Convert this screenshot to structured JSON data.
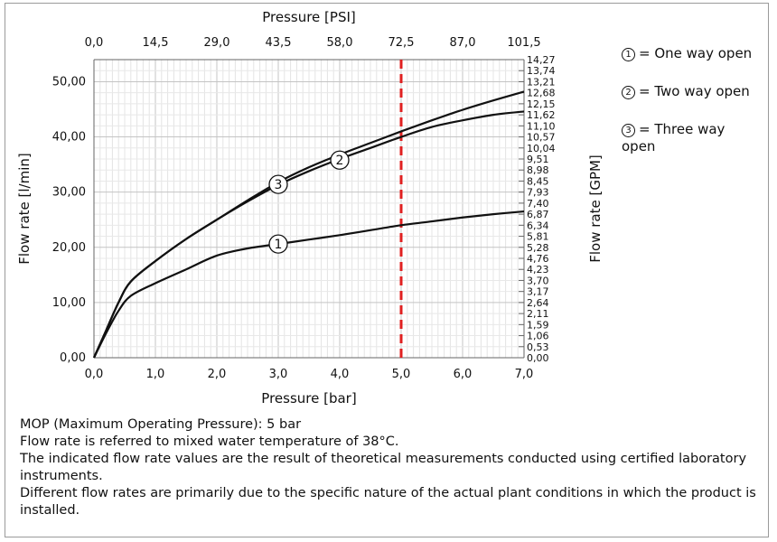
{
  "chart_data": {
    "type": "line",
    "title": "",
    "xlabel": "Pressure [bar]",
    "ylabel": "Flow rate [l/min]",
    "x2label": "Pressure [PSI]",
    "y2label": "Flow rate [GPM]",
    "xlim": [
      0,
      7
    ],
    "ylim": [
      0,
      54
    ],
    "x_ticks": [
      "0,0",
      "1,0",
      "2,0",
      "3,0",
      "4,0",
      "5,0",
      "6,0",
      "7,0"
    ],
    "y_ticks": [
      "0,00",
      "10,00",
      "20,00",
      "30,00",
      "40,00",
      "50,00"
    ],
    "x2_ticks": [
      "0,0",
      "14,5",
      "29,0",
      "43,5",
      "58,0",
      "72,5",
      "87,0",
      "101,5"
    ],
    "y2_ticks": [
      "0,00",
      "0,53",
      "1,06",
      "1,59",
      "2,11",
      "2,64",
      "3,17",
      "3,70",
      "4,23",
      "4,76",
      "5,28",
      "5,81",
      "6,34",
      "6,87",
      "7,40",
      "7,93",
      "8,45",
      "8,98",
      "9,51",
      "10,04",
      "10,57",
      "11,10",
      "11,62",
      "12,15",
      "12,68",
      "13,21",
      "13,74",
      "14,27"
    ],
    "grid": true,
    "series": [
      {
        "name": "1",
        "x": [
          0,
          0.2,
          0.4,
          0.6,
          1.0,
          1.5,
          2.0,
          2.5,
          3.0,
          3.5,
          4.0,
          4.5,
          5.0,
          5.5,
          6.0,
          6.5,
          7.0
        ],
        "y": [
          0,
          4.5,
          8.5,
          11.2,
          13.5,
          16.0,
          18.5,
          19.8,
          20.6,
          21.4,
          22.2,
          23.1,
          24.0,
          24.7,
          25.4,
          26.0,
          26.5
        ]
      },
      {
        "name": "2",
        "x": [
          0,
          0.2,
          0.4,
          0.6,
          1.0,
          1.5,
          2.0,
          2.5,
          3.0,
          3.5,
          4.0,
          4.5,
          5.0,
          5.5,
          6.0,
          6.5,
          7.0
        ],
        "y": [
          0,
          5.0,
          10.0,
          13.8,
          17.5,
          21.5,
          25.0,
          28.3,
          31.3,
          33.8,
          36.0,
          38.0,
          40.0,
          41.8,
          43.0,
          44.0,
          44.6
        ]
      },
      {
        "name": "3",
        "x": [
          0,
          0.2,
          0.4,
          0.6,
          1.0,
          1.5,
          2.0,
          2.5,
          3.0,
          3.5,
          4.0,
          4.5,
          5.0,
          5.5,
          6.0,
          6.5,
          7.0
        ],
        "y": [
          0,
          5.0,
          10.0,
          13.8,
          17.5,
          21.5,
          25.0,
          28.5,
          31.8,
          34.5,
          36.8,
          38.9,
          41.0,
          43.0,
          44.9,
          46.6,
          48.2
        ]
      }
    ],
    "curve_markers": [
      {
        "label": "1",
        "x": 3.0,
        "y": 20.6
      },
      {
        "label": "2",
        "x": 4.0,
        "y": 35.8
      },
      {
        "label": "3",
        "x": 3.0,
        "y": 31.4
      }
    ],
    "reference_line": {
      "x": 5.0,
      "color": "#e02020",
      "style": "dashed"
    },
    "line_color": "#111111",
    "legend": [
      {
        "symbol": "1",
        "text": "= One way open"
      },
      {
        "symbol": "2",
        "text": "= Two way open"
      },
      {
        "symbol": "3",
        "text": "= Three way open"
      }
    ]
  },
  "notes": [
    "MOP (Maximum Operating Pressure): 5 bar",
    "Flow rate is referred to mixed water temperature of 38°C.",
    "The indicated flow rate values are the result of theoretical measurements conducted using certified laboratory instruments.",
    "Different flow rates are primarily due to the specific nature of the actual plant conditions in which the product is installed."
  ]
}
